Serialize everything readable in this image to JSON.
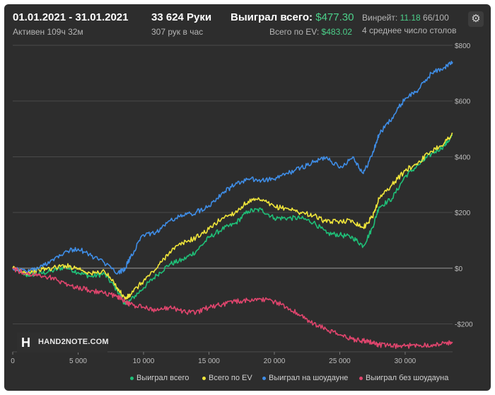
{
  "header": {
    "date_range": "01.01.2021 - 31.01.2021",
    "active_time": "Активен 109ч 32м",
    "hands": "33 624 Руки",
    "hands_per_hour": "307 рук в час",
    "won_total_label": "Выиграл всего:",
    "won_total_value": "$477.30",
    "ev_total_label": "Всего по EV:",
    "ev_total_value": "$483.02",
    "winrate_label": "Винрейт:",
    "winrate_value": "11.18",
    "winrate_suffix": "66/100",
    "avg_tables": "4 среднее число столов"
  },
  "logo": {
    "mark": "H",
    "text": "HAND2NOTE.COM"
  },
  "colors": {
    "background": "#2d2d2d",
    "grid": "#4a4a4a",
    "zero_line": "#9a9a9a",
    "accent_green": "#4cd08a"
  },
  "icons": {
    "settings": "gear-icon"
  },
  "chart_data": {
    "type": "line",
    "xlim": [
      0,
      33624
    ],
    "ylim": [
      -300,
      800
    ],
    "x_ticks": [
      0,
      5000,
      10000,
      15000,
      20000,
      25000,
      30000
    ],
    "x_tick_labels": [
      "0",
      "5 000",
      "10 000",
      "15 000",
      "20 000",
      "25 000",
      "30 000"
    ],
    "y_ticks": [
      800,
      600,
      400,
      200,
      0,
      -200
    ],
    "y_tick_labels": [
      "$800",
      "$600",
      "$400",
      "$200",
      "$0",
      "-$200"
    ],
    "grid": true,
    "legend_position": "bottom",
    "series": [
      {
        "name": "Выиграл всего",
        "color": "#1fbf78",
        "x": [
          0,
          1000,
          2000,
          3000,
          4000,
          5000,
          6000,
          7000,
          8000,
          8600,
          9000,
          10000,
          11000,
          12000,
          13000,
          14000,
          15000,
          16000,
          17000,
          18000,
          19000,
          20000,
          21000,
          22000,
          23000,
          24000,
          25000,
          26000,
          26800,
          27500,
          28000,
          29000,
          30000,
          31000,
          32000,
          33000,
          33624
        ],
        "y": [
          0,
          -25,
          -20,
          -10,
          5,
          -15,
          -30,
          -20,
          -80,
          -130,
          -115,
          -70,
          -25,
          15,
          30,
          60,
          110,
          140,
          160,
          205,
          210,
          180,
          180,
          180,
          165,
          125,
          120,
          110,
          80,
          145,
          220,
          250,
          330,
          370,
          410,
          440,
          477
        ]
      },
      {
        "name": "Всего по EV",
        "color": "#f0e53a",
        "x": [
          0,
          1000,
          2000,
          3000,
          4000,
          5000,
          6000,
          7000,
          8000,
          8600,
          9000,
          10000,
          11000,
          12000,
          13000,
          14000,
          15000,
          16000,
          17000,
          18000,
          19000,
          20000,
          21000,
          22000,
          23000,
          24000,
          25000,
          26000,
          26800,
          27500,
          28000,
          29000,
          30000,
          31000,
          32000,
          33000,
          33624
        ],
        "y": [
          0,
          -15,
          -5,
          0,
          10,
          0,
          -20,
          -10,
          -70,
          -110,
          -95,
          -45,
          0,
          60,
          90,
          110,
          140,
          180,
          200,
          240,
          245,
          220,
          215,
          200,
          190,
          165,
          170,
          170,
          145,
          185,
          250,
          300,
          350,
          380,
          420,
          450,
          483
        ]
      },
      {
        "name": "Выиграл на шоудауне",
        "color": "#3f8de6",
        "x": [
          0,
          1000,
          2000,
          3000,
          4000,
          5000,
          6000,
          7000,
          8000,
          8600,
          9000,
          10000,
          11000,
          12000,
          13000,
          14000,
          15000,
          16000,
          17000,
          18000,
          19000,
          20000,
          21000,
          22000,
          23000,
          24000,
          25000,
          26000,
          26800,
          27500,
          28000,
          29000,
          30000,
          31000,
          32000,
          33000,
          33624
        ],
        "y": [
          0,
          -10,
          0,
          30,
          60,
          70,
          45,
          20,
          -20,
          0,
          40,
          120,
          130,
          170,
          190,
          200,
          225,
          270,
          300,
          320,
          315,
          320,
          340,
          360,
          380,
          400,
          360,
          400,
          340,
          410,
          480,
          540,
          610,
          640,
          700,
          720,
          740
        ]
      },
      {
        "name": "Выиграл без шоудауна",
        "color": "#e0456d",
        "x": [
          0,
          1000,
          2000,
          3000,
          4000,
          5000,
          6000,
          7000,
          8000,
          8600,
          9000,
          10000,
          11000,
          12000,
          13000,
          14000,
          15000,
          16000,
          17000,
          18000,
          19000,
          20000,
          21000,
          22000,
          23000,
          24000,
          25000,
          26000,
          26800,
          27500,
          28000,
          29000,
          30000,
          31000,
          32000,
          33000,
          33624
        ],
        "y": [
          0,
          -20,
          -25,
          -35,
          -55,
          -70,
          -80,
          -90,
          -100,
          -120,
          -130,
          -140,
          -150,
          -140,
          -155,
          -160,
          -140,
          -130,
          -120,
          -115,
          -110,
          -120,
          -140,
          -170,
          -200,
          -220,
          -240,
          -255,
          -260,
          -265,
          -275,
          -280,
          -280,
          -275,
          -275,
          -270,
          -265
        ]
      }
    ]
  }
}
